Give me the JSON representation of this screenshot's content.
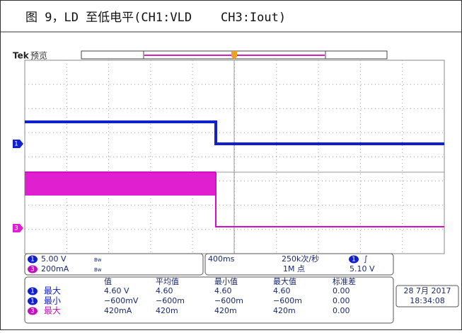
{
  "caption": "图 9，LD 至低电平(CH1:VLD    CH3:Iout)",
  "scope": {
    "brand": "Tek",
    "mode": "预览",
    "channel_markers": [
      "1",
      "3"
    ],
    "settings": {
      "channels": [
        {
          "channel": "1",
          "scale": "5.00 V",
          "coupling": "Bw"
        },
        {
          "channel": "3",
          "scale": "200mA",
          "coupling": "Bw"
        }
      ],
      "timebase": "400ms",
      "sample_rate": "250k次/秒",
      "record_length": "1M 点",
      "trigger": {
        "channel": "1",
        "slope": "∫",
        "level": "5.10 V"
      }
    },
    "measurements": {
      "header": [
        "值",
        "平均值",
        "最小值",
        "最大值",
        "标准差"
      ],
      "rows": [
        {
          "channel": "1",
          "name": "最大",
          "values": [
            "4.60 V",
            "4.60",
            "4.60",
            "4.60",
            "0.00"
          ]
        },
        {
          "channel": "1",
          "name": "最小",
          "values": [
            "−600mV",
            "−600m",
            "−600m",
            "−600m",
            "0.00"
          ]
        },
        {
          "channel": "3",
          "name": "最大",
          "values": [
            "420mA",
            "420m",
            "420m",
            "420m",
            "0.00"
          ]
        }
      ]
    },
    "date": "28 7月 2017",
    "time": "18:34:08"
  }
}
